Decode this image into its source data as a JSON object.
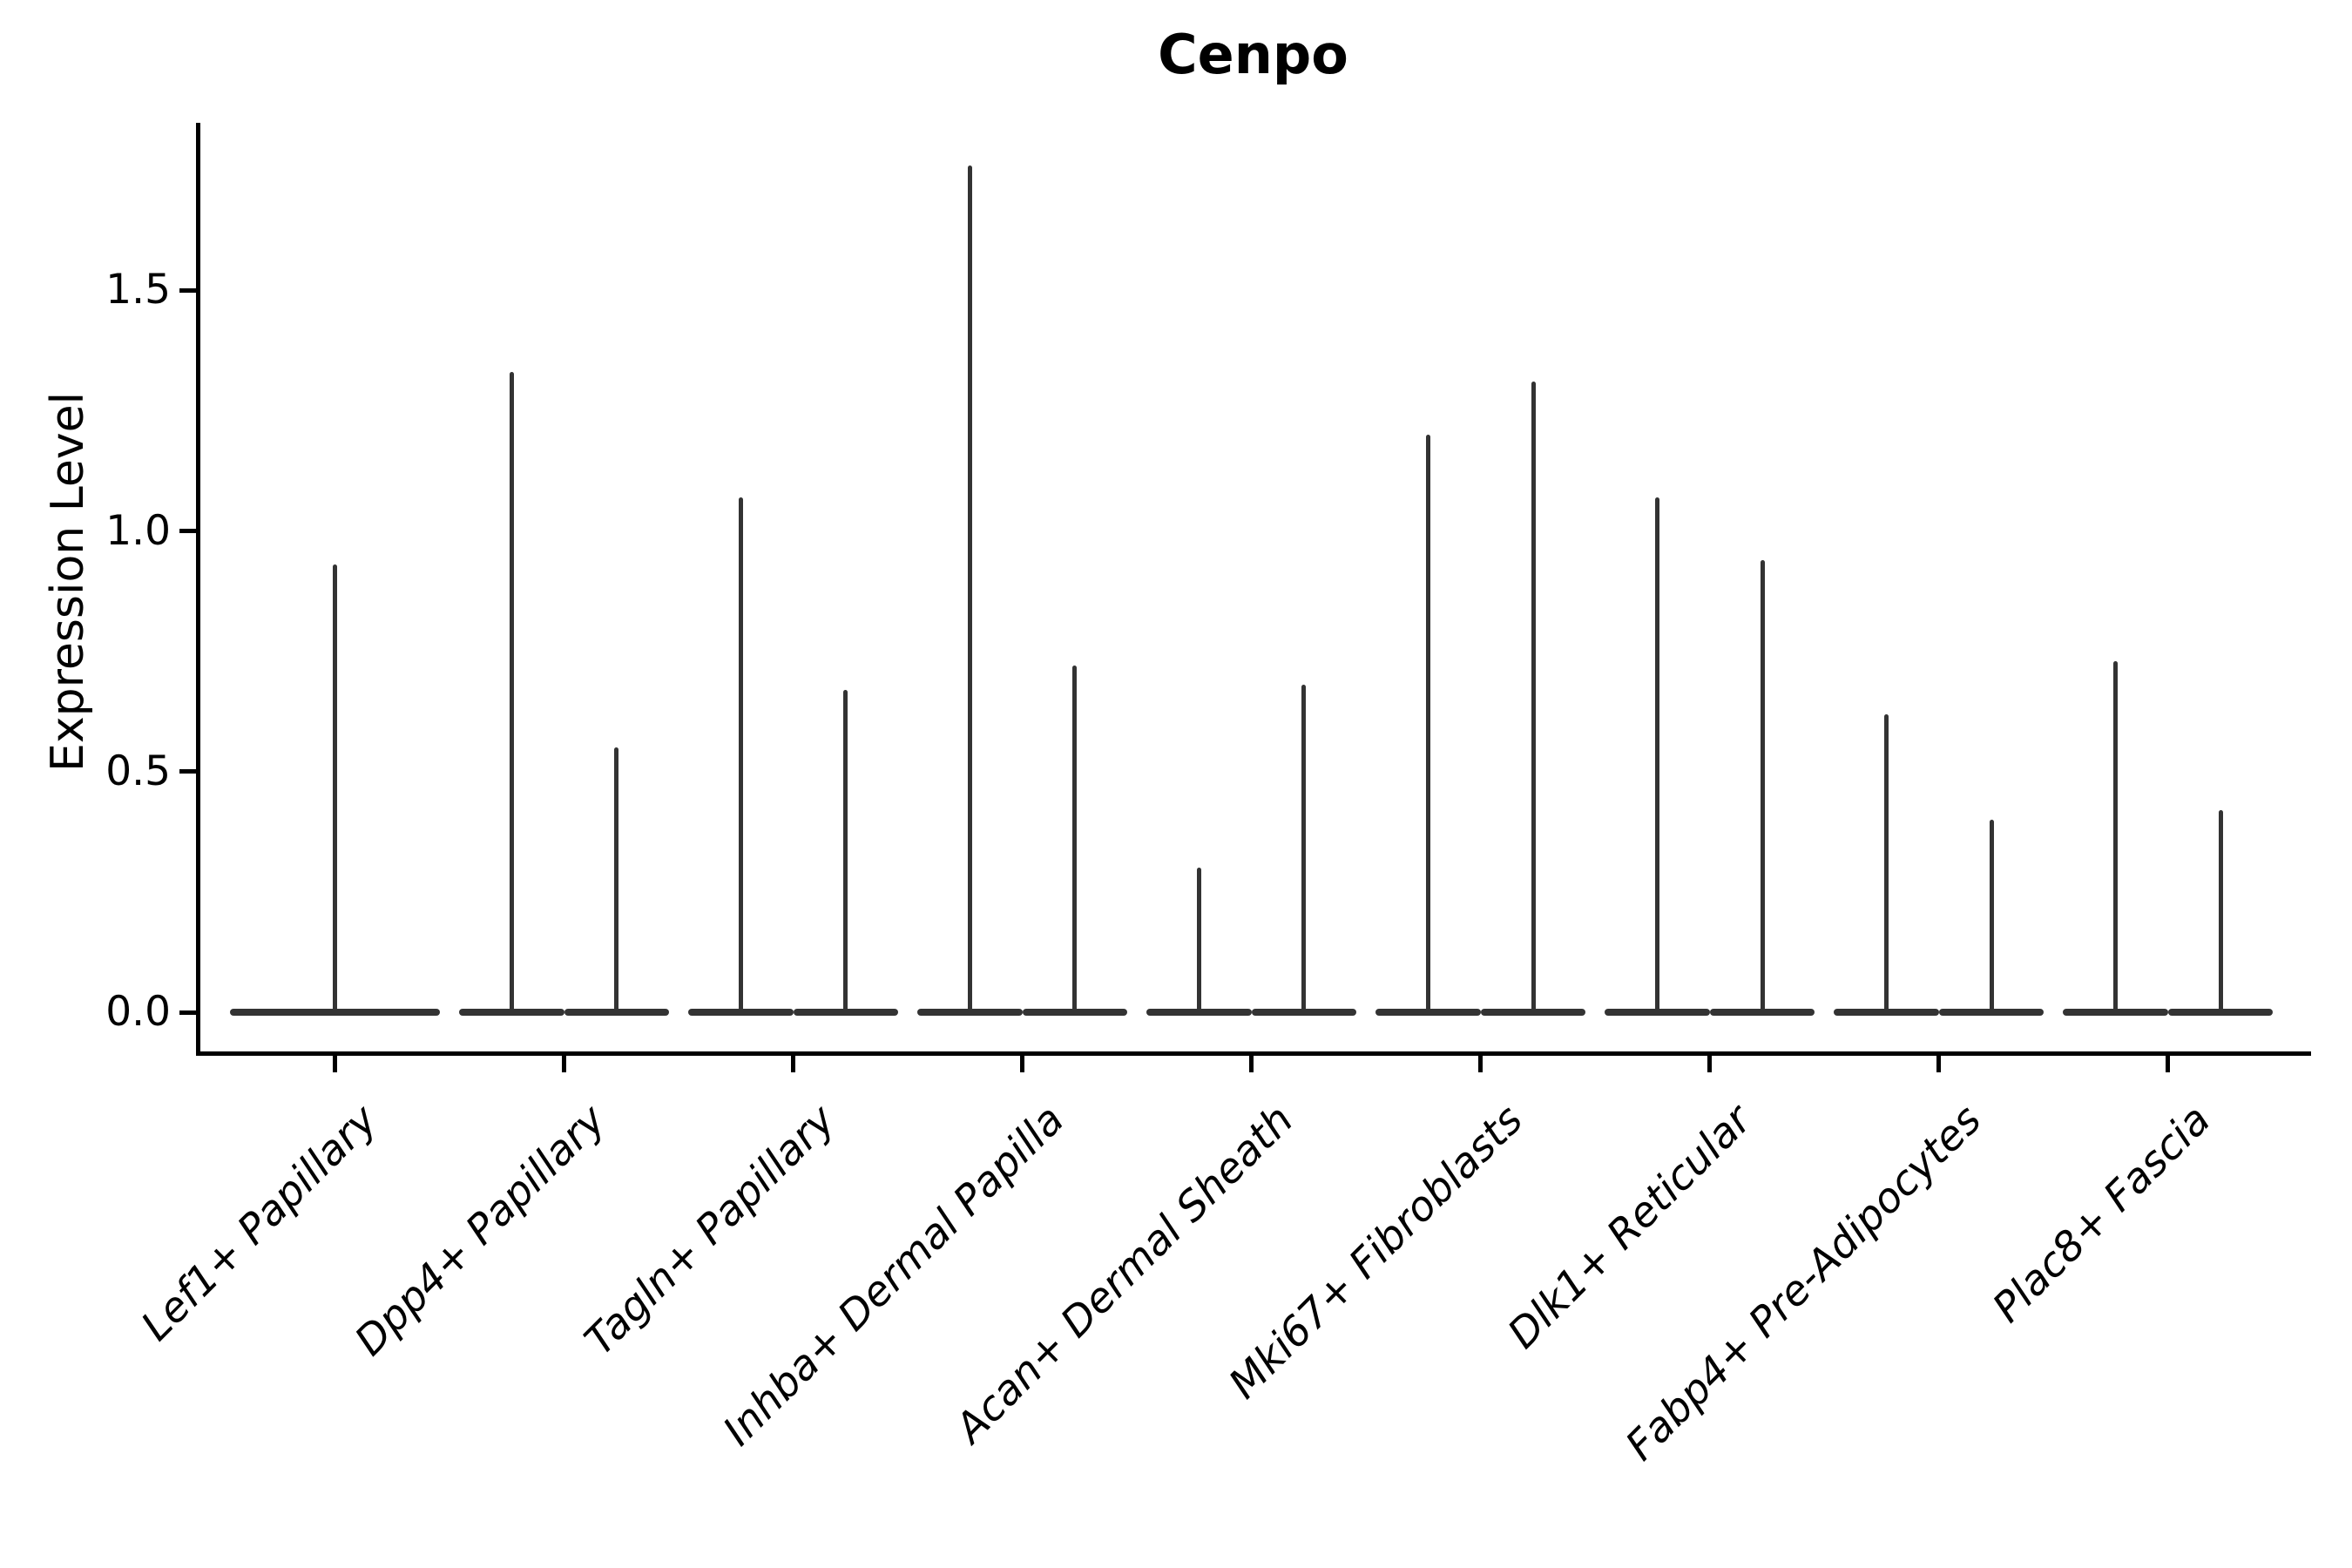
{
  "title": "Cenpo",
  "chart_data": {
    "type": "violin",
    "title": "Cenpo",
    "xlabel": "",
    "ylabel": "Expression Level",
    "ytick_labels": [
      "0.0",
      "0.5",
      "1.0",
      "1.5"
    ],
    "ytick_values": [
      0.0,
      0.5,
      1.0,
      1.5
    ],
    "ylim": [
      -0.08,
      1.85
    ],
    "grid": false,
    "legend": "none",
    "ink_color": "#333333",
    "axis_color": "#000000",
    "background_color": "#ffffff",
    "categories": [
      "Lef1+ Papillary",
      "Dpp4+ Papillary",
      "Tagln+ Papillary",
      "Inhba+ Dermal Papilla",
      "Acan+ Dermal Sheath",
      "Mki67+ Fibroblasts",
      "Dlk1+ Reticular",
      "Fabp4+ Pre-Adipocytes",
      "Plac8+ Fascia"
    ],
    "violin_shape": "mass concentrated at 0 with thin spike up to maximum",
    "violins_per_category": [
      1,
      2,
      2,
      2,
      2,
      2,
      2,
      2,
      2
    ],
    "violin_maxima": [
      [
        0.93
      ],
      [
        1.33,
        0.55
      ],
      [
        1.07,
        0.67
      ],
      [
        1.76,
        0.72
      ],
      [
        0.3,
        0.68
      ],
      [
        1.2,
        1.31
      ],
      [
        1.07,
        0.94
      ],
      [
        0.62,
        0.4
      ],
      [
        0.73,
        0.42
      ]
    ]
  }
}
